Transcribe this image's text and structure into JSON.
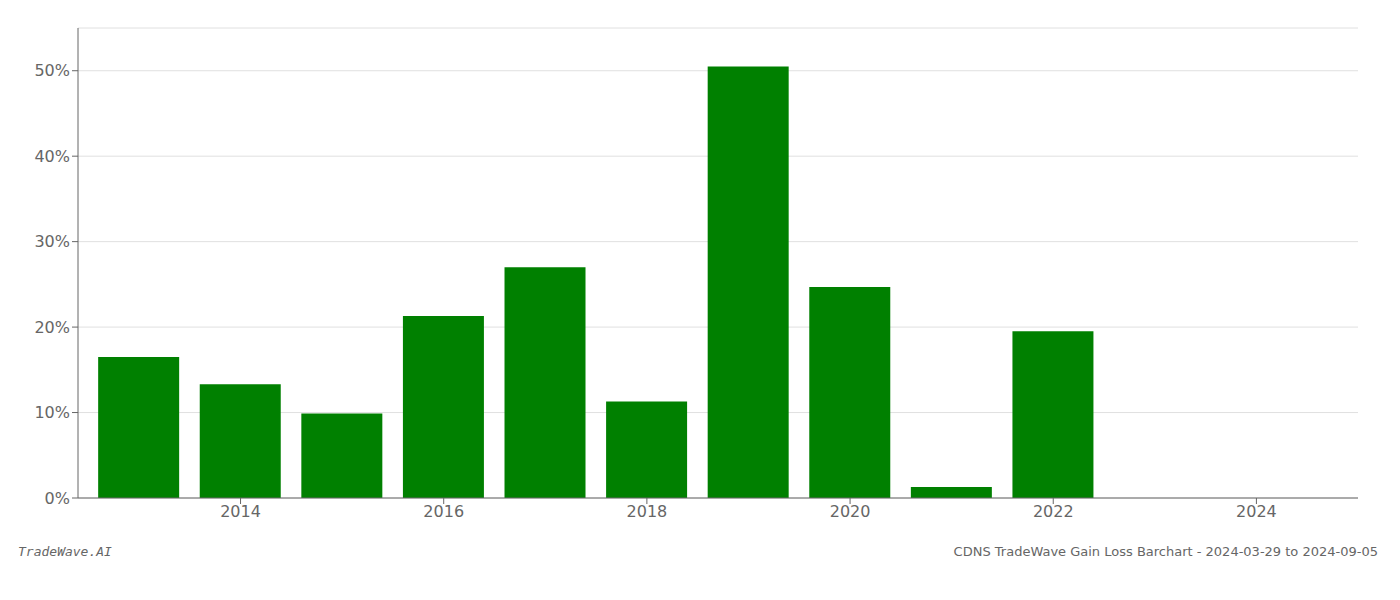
{
  "chart_data": {
    "type": "bar",
    "x": [
      2013,
      2014,
      2015,
      2016,
      2017,
      2018,
      2019,
      2020,
      2021,
      2022,
      2023,
      2024
    ],
    "values": [
      0.165,
      0.133,
      0.099,
      0.213,
      0.27,
      0.113,
      0.505,
      0.247,
      0.013,
      0.195,
      0.0,
      0.0
    ],
    "color": "#008000",
    "xlim": [
      2012.4,
      2025.0
    ],
    "xticks": [
      2014,
      2016,
      2018,
      2020,
      2022,
      2024
    ],
    "ylim": [
      0,
      0.55
    ],
    "yticks": [
      {
        "value": 0.0,
        "label": "0%"
      },
      {
        "value": 0.1,
        "label": "10%"
      },
      {
        "value": 0.2,
        "label": "20%"
      },
      {
        "value": 0.3,
        "label": "30%"
      },
      {
        "value": 0.4,
        "label": "40%"
      },
      {
        "value": 0.5,
        "label": "50%"
      }
    ],
    "grid": true,
    "annotations": [
      "TradeWave.AI",
      "CDNS TradeWave Gain Loss Barchart - 2024-03-29 to 2024-09-05"
    ]
  }
}
